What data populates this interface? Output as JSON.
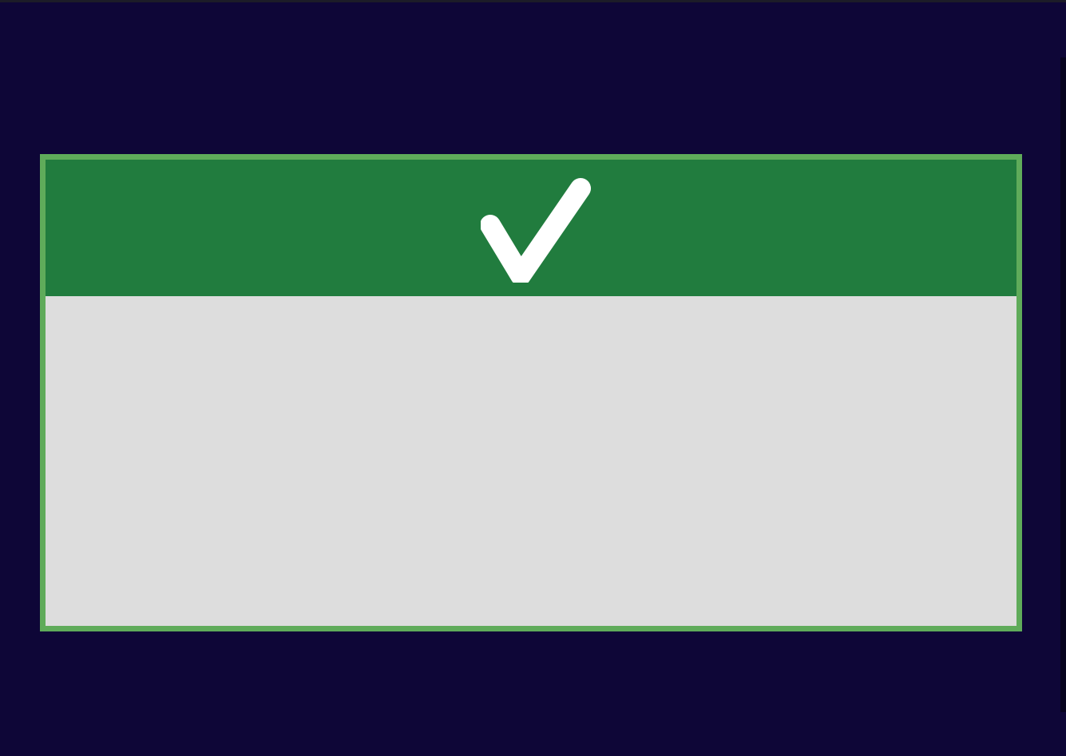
{
  "screen": {
    "background_color": "#0e0637"
  },
  "dialog": {
    "border_color": "#5fab5a",
    "header": {
      "background_color": "#217c3e",
      "icon": "check-icon",
      "icon_color": "#ffffff"
    },
    "body": {
      "background_color": "#dddddd",
      "message": ""
    }
  }
}
